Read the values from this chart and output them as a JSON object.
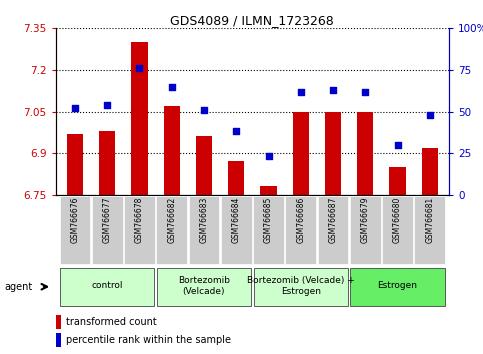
{
  "title": "GDS4089 / ILMN_1723268",
  "samples": [
    "GSM766676",
    "GSM766677",
    "GSM766678",
    "GSM766682",
    "GSM766683",
    "GSM766684",
    "GSM766685",
    "GSM766686",
    "GSM766687",
    "GSM766679",
    "GSM766680",
    "GSM766681"
  ],
  "bar_values": [
    6.97,
    6.98,
    7.3,
    7.07,
    6.96,
    6.87,
    6.78,
    7.05,
    7.05,
    7.05,
    6.85,
    6.92
  ],
  "dot_values": [
    52,
    54,
    76,
    65,
    51,
    38,
    23,
    62,
    63,
    62,
    30,
    48
  ],
  "ylim_left": [
    6.75,
    7.35
  ],
  "ylim_right": [
    0,
    100
  ],
  "yticks_left": [
    6.75,
    6.9,
    7.05,
    7.2,
    7.35
  ],
  "yticks_right": [
    0,
    25,
    50,
    75,
    100
  ],
  "ytick_labels_left": [
    "6.75",
    "6.9",
    "7.05",
    "7.2",
    "7.35"
  ],
  "ytick_labels_right": [
    "0",
    "25",
    "50",
    "75",
    "100%"
  ],
  "bar_color": "#cc0000",
  "dot_color": "#0000cc",
  "left_tick_color": "#cc0000",
  "right_tick_color": "#0000cc",
  "xtick_bg": "#cccccc",
  "groups": [
    {
      "label": "control",
      "start": 0,
      "end": 3,
      "color": "#ccffcc"
    },
    {
      "label": "Bortezomib\n(Velcade)",
      "start": 3,
      "end": 6,
      "color": "#ccffcc"
    },
    {
      "label": "Bortezomib (Velcade) +\nEstrogen",
      "start": 6,
      "end": 9,
      "color": "#ccffcc"
    },
    {
      "label": "Estrogen",
      "start": 9,
      "end": 12,
      "color": "#66ee66"
    }
  ],
  "agent_label": "agent",
  "legend_bar_label": "transformed count",
  "legend_dot_label": "percentile rank within the sample",
  "bar_bottom": 6.75
}
